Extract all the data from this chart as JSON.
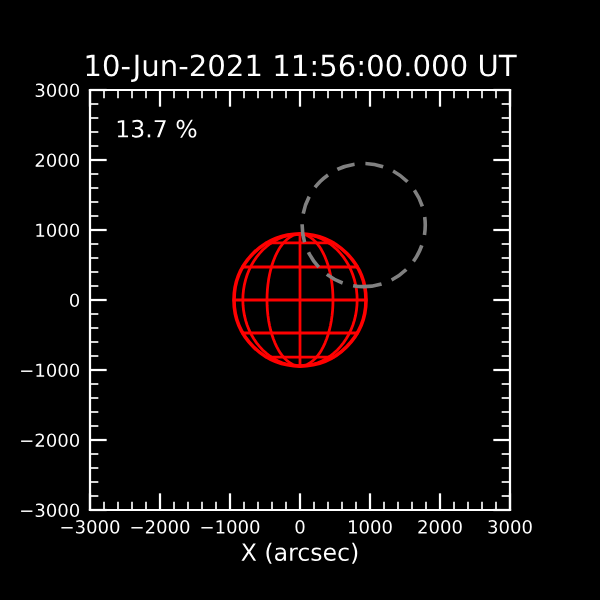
{
  "chart_data": {
    "type": "bubble",
    "title": "10-Jun-2021 11:56:00.000 UT",
    "xlabel": "X (arcsec)",
    "annotations": [
      "13.7 %"
    ],
    "xlim": [
      -3000,
      3000
    ],
    "ylim": [
      -3000,
      3000
    ],
    "xticks": [
      -3000,
      -2000,
      -1000,
      0,
      1000,
      2000,
      3000
    ],
    "yticks": [
      -3000,
      -2000,
      -1000,
      0,
      1000,
      2000,
      3000
    ],
    "series": [
      {
        "color": "#ff0000",
        "line_style": "solid",
        "x": [
          0
        ],
        "values": [
          0
        ],
        "sizes": [
          1
        ]
      },
      {
        "color": "#808080",
        "line_style": "dashed",
        "x": [
          910
        ],
        "values": [
          1070
        ],
        "sizes": [
          0.87
        ]
      }
    ]
  }
}
